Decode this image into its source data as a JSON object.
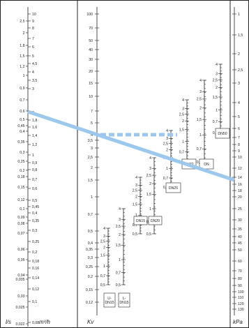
{
  "chart_data": {
    "type": "nomogram",
    "axes": {
      "ls": {
        "label": "l/s",
        "ticks": [
          "2,5",
          "2",
          "1,8",
          "1,5",
          "1,2",
          "1",
          "0,9",
          "0,7",
          "0,6",
          "0,5",
          "0,45",
          "0,4",
          "0,35",
          "0,3",
          "0,25",
          "0,2",
          "0,18",
          "0,15",
          "0,12",
          "0,1",
          "0,09",
          "0,08",
          "0,07",
          "0,06",
          "0,05",
          "0,04",
          "0,035",
          "0,03",
          "0,025",
          "0,022"
        ],
        "ticks_y": [
          30,
          47,
          65,
          80,
          95,
          108,
          126,
          143,
          159,
          171,
          180,
          188,
          203,
          218,
          231,
          244,
          253,
          268,
          286,
          299,
          311,
          320,
          334,
          357,
          372,
          394,
          400,
          424,
          440,
          464
        ]
      },
      "m3h": {
        "label": "m³/h",
        "ticks": [
          "10",
          "9",
          "8",
          "7",
          "6",
          "5",
          "4,5",
          "4",
          "3,5",
          "3",
          "2",
          "1,8",
          "1,6",
          "1,4",
          "1,2",
          "1",
          "0,9",
          "0,8",
          "0,7",
          "0,6",
          "0,5",
          "0,45",
          "0,4",
          "0,35",
          "0,3",
          "0,25",
          "0,2",
          "0,18",
          "0,16",
          "0,14",
          "0,12",
          "0,1",
          "0,08"
        ],
        "ticks_y": [
          20,
          30,
          40,
          55,
          67,
          80,
          91,
          103,
          115,
          127,
          161,
          172,
          182,
          194,
          207,
          222,
          233,
          243,
          257,
          270,
          287,
          296,
          305,
          316,
          330,
          346,
          361,
          374,
          384,
          398,
          414,
          432,
          462
        ]
      },
      "kv": {
        "label": "Kv",
        "ticks": [
          "100",
          "70",
          "50",
          "40",
          "30",
          "20",
          "15",
          "10",
          "7",
          "5",
          "4",
          "3,5",
          "3",
          "2,5",
          "2",
          "1,5",
          "1",
          "0,7",
          "0,5",
          "0,4",
          "0,35",
          "0,3",
          "0,25",
          "0,2",
          "0,15",
          "0,12"
        ],
        "ticks_y": [
          20,
          40,
          58,
          71,
          85,
          102,
          119,
          138,
          159,
          176,
          193,
          201,
          212,
          225,
          240,
          258,
          282,
          307,
          331,
          348,
          357,
          369,
          382,
          396,
          415,
          433
        ]
      },
      "kpa": {
        "label": "kPa",
        "ticks": [
          "1",
          "1,5",
          "2",
          "2,5",
          "3",
          "4",
          "5",
          "6",
          "7",
          "8",
          "9",
          "10",
          "12",
          "14",
          "16",
          "18",
          "20",
          "25",
          "30",
          "35",
          "40",
          "45",
          "50",
          "60",
          "70",
          "80",
          "90",
          "100",
          "110",
          "120",
          "130"
        ],
        "ticks_y": [
          20,
          50,
          77,
          100,
          119,
          147,
          167,
          184,
          197,
          207,
          216,
          225,
          241,
          254,
          264,
          273,
          282,
          299,
          315,
          328,
          339,
          348,
          358,
          374,
          388,
          399,
          409,
          418,
          426,
          435,
          443
        ]
      }
    },
    "valve_scales": [
      {
        "label": "U-\nDN15",
        "ticks": [
          "4",
          "3",
          "2,5",
          "2",
          "1,5",
          "1",
          "0,7",
          "0,5"
        ]
      },
      {
        "label": "L-\nDN15",
        "ticks": [
          "4",
          "3",
          "2,5",
          "2",
          "1,5",
          "1",
          "0,7",
          "0,5"
        ]
      },
      {
        "label": "DN15",
        "ticks": [
          "4",
          "3",
          "2,5",
          "2",
          "1,5",
          "1",
          "0,7",
          "0,5"
        ]
      },
      {
        "label": "DN20",
        "ticks": [
          "4",
          "3",
          "2,5",
          "2",
          "1,5",
          "1",
          "0,7",
          "0,5"
        ]
      },
      {
        "label": "DN25",
        "ticks": [
          "4",
          "3",
          "2,5",
          "2",
          "1,5",
          "1",
          "0,7",
          "0,5"
        ]
      },
      {
        "label": "DN32",
        "ticks": [
          "4",
          "3",
          "2,5",
          "2",
          "1,5",
          "1",
          "0,7",
          "0,5"
        ]
      },
      {
        "label": "DN",
        "ticks": [
          "4",
          "3",
          "2,5",
          "2",
          "1,5",
          "1",
          "0,7",
          "0,5"
        ]
      },
      {
        "label": "DN50",
        "ticks": [
          "4",
          "3",
          "2,5",
          "2",
          "1,5",
          "1",
          "0,7",
          "0,5"
        ]
      }
    ],
    "colors": {
      "line": "#9cc8ee",
      "axis": "#222222"
    }
  }
}
